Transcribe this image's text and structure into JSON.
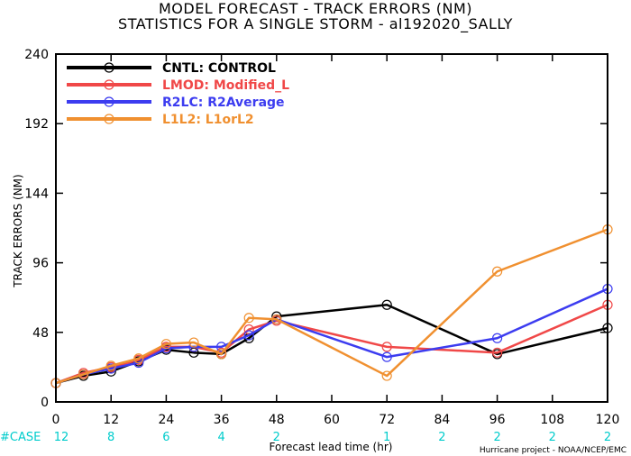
{
  "title_line1": "MODEL FORECAST - TRACK ERRORS (NM)",
  "title_line2": "STATISTICS FOR A SINGLE STORM - al192020_SALLY",
  "chart_data": {
    "type": "line",
    "xlabel": "Forecast lead time (hr)",
    "ylabel": "TRACK ERRORS (NM)",
    "xlim": [
      0,
      120
    ],
    "ylim": [
      0,
      240
    ],
    "x_ticks": [
      0,
      12,
      24,
      36,
      48,
      60,
      72,
      84,
      96,
      108,
      120
    ],
    "y_ticks": [
      0,
      48,
      96,
      144,
      192,
      240
    ],
    "grid": false,
    "legend_position": "top-left",
    "case_label": "#CASE",
    "case_color": "#00cccc",
    "cases": [
      {
        "x": 0,
        "n": "12"
      },
      {
        "x": 12,
        "n": "8"
      },
      {
        "x": 24,
        "n": "6"
      },
      {
        "x": 36,
        "n": "4"
      },
      {
        "x": 48,
        "n": "2"
      },
      {
        "x": 72,
        "n": "1"
      },
      {
        "x": 84,
        "n": "2"
      },
      {
        "x": 96,
        "n": "2"
      },
      {
        "x": 108,
        "n": "2"
      },
      {
        "x": 120,
        "n": "2"
      }
    ],
    "series": [
      {
        "name": "CNTL: CONTROL",
        "color": "#000000",
        "points": [
          [
            0,
            13
          ],
          [
            6,
            18
          ],
          [
            12,
            21
          ],
          [
            18,
            28
          ],
          [
            24,
            36
          ],
          [
            30,
            34
          ],
          [
            36,
            33
          ],
          [
            42,
            44
          ],
          [
            48,
            59
          ],
          [
            72,
            67
          ],
          [
            96,
            33
          ],
          [
            120,
            51
          ]
        ]
      },
      {
        "name": "LMOD: Modified_L",
        "color": "#f04848",
        "points": [
          [
            0,
            13
          ],
          [
            6,
            20
          ],
          [
            12,
            24
          ],
          [
            18,
            29
          ],
          [
            24,
            38
          ],
          [
            30,
            38
          ],
          [
            36,
            34
          ],
          [
            42,
            50
          ],
          [
            48,
            56
          ],
          [
            72,
            38
          ],
          [
            96,
            34
          ],
          [
            120,
            67
          ]
        ]
      },
      {
        "name": "R2LC: R2Average",
        "color": "#3c3cf0",
        "points": [
          [
            0,
            13
          ],
          [
            6,
            19
          ],
          [
            12,
            23
          ],
          [
            18,
            27
          ],
          [
            24,
            37
          ],
          [
            30,
            38
          ],
          [
            36,
            38
          ],
          [
            42,
            46
          ],
          [
            48,
            57
          ],
          [
            72,
            31
          ],
          [
            96,
            44
          ],
          [
            120,
            78
          ]
        ]
      },
      {
        "name": "L1L2: L1orL2",
        "color": "#f09030",
        "points": [
          [
            0,
            13
          ],
          [
            6,
            19
          ],
          [
            12,
            25
          ],
          [
            18,
            30
          ],
          [
            24,
            40
          ],
          [
            30,
            41
          ],
          [
            36,
            33
          ],
          [
            42,
            58
          ],
          [
            48,
            57
          ],
          [
            72,
            18
          ],
          [
            96,
            90
          ],
          [
            120,
            119
          ]
        ]
      }
    ]
  },
  "footer": "Hurricane project - NOAA/NCEP/EMC"
}
